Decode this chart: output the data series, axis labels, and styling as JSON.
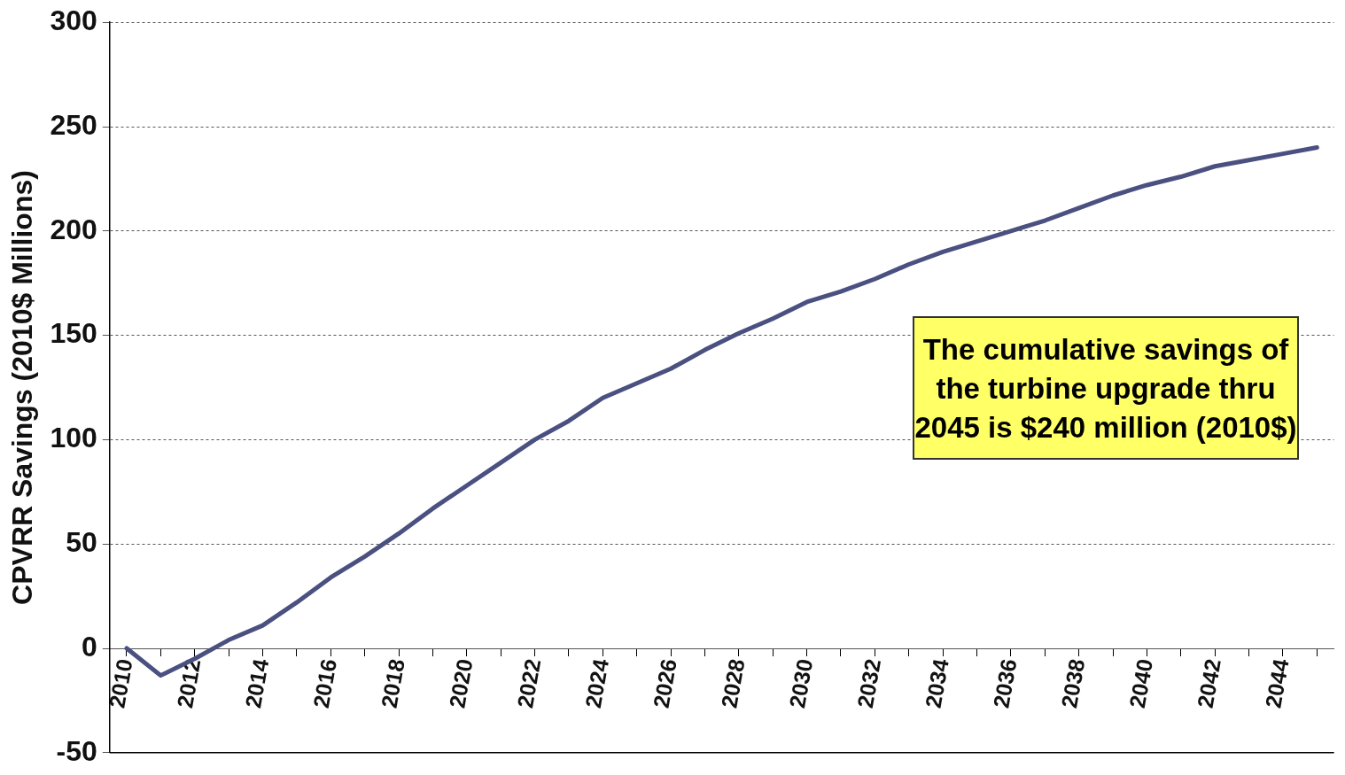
{
  "chart_data": {
    "type": "line",
    "ylabel": "CPVRR Savings (2010$ Millions)",
    "categories": [
      "2010",
      null,
      "2012",
      null,
      "2014",
      null,
      "2016",
      null,
      "2018",
      null,
      "2020",
      null,
      "2022",
      null,
      "2024",
      null,
      "2026",
      null,
      "2028",
      null,
      "2030",
      null,
      "2032",
      null,
      "2034",
      null,
      "2036",
      null,
      "2038",
      null,
      "2040",
      null,
      "2042",
      null,
      "2044",
      null
    ],
    "series": [
      {
        "color": "#4a5080",
        "values": [
          0,
          -13,
          -5,
          4,
          11,
          22,
          34,
          44,
          55,
          67,
          78,
          89,
          100,
          109,
          120,
          127,
          134,
          143,
          151,
          158,
          166,
          171,
          177,
          184,
          190,
          195,
          200,
          205,
          211,
          217,
          222,
          226,
          231,
          234,
          237,
          240
        ]
      }
    ],
    "ylim": [
      -50,
      300
    ],
    "yticks": [
      -50,
      0,
      50,
      100,
      150,
      200,
      250,
      300
    ],
    "grid": "y",
    "legend": false,
    "marker": "none",
    "line_style": "solid",
    "annotations": [
      "The cumulative savings of the turbine upgrade thru 2045 is $240 million (2010$)"
    ]
  }
}
